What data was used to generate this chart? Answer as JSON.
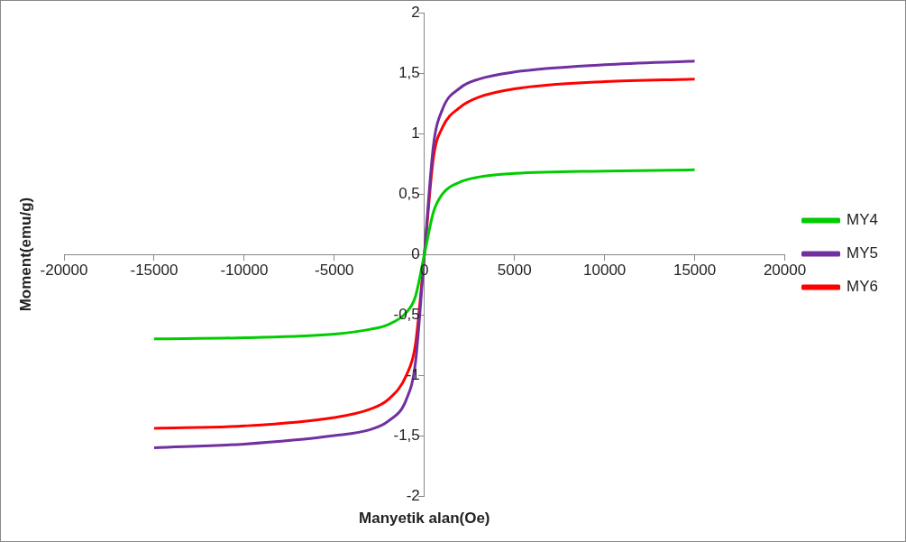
{
  "chart_data": {
    "type": "line",
    "xlabel": "Manyetik alan(Oe)",
    "ylabel": "Moment(emu/g)",
    "x": [
      -15000,
      -10000,
      -5000,
      -3000,
      -2000,
      -1000,
      -500,
      0,
      500,
      1000,
      2000,
      3000,
      5000,
      10000,
      15000
    ],
    "series": [
      {
        "name": "MY4",
        "color": "#00cc00",
        "values": [
          -0.7,
          -0.69,
          -0.66,
          -0.62,
          -0.58,
          -0.48,
          -0.35,
          0,
          0.35,
          0.5,
          0.6,
          0.64,
          0.67,
          0.69,
          0.7
        ]
      },
      {
        "name": "MY5",
        "color": "#7030a0",
        "values": [
          -1.6,
          -1.57,
          -1.5,
          -1.45,
          -1.38,
          -1.2,
          -0.9,
          0,
          0.9,
          1.2,
          1.38,
          1.45,
          1.51,
          1.57,
          1.6
        ]
      },
      {
        "name": "MY6",
        "color": "#ff0000",
        "values": [
          -1.44,
          -1.42,
          -1.35,
          -1.28,
          -1.2,
          -1.0,
          -0.75,
          0,
          0.8,
          1.05,
          1.22,
          1.3,
          1.37,
          1.43,
          1.45
        ]
      }
    ],
    "xlim": [
      -20000,
      20000
    ],
    "xticks": [
      -20000,
      -15000,
      -10000,
      -5000,
      0,
      5000,
      10000,
      15000,
      20000
    ],
    "ylim": [
      -2,
      2
    ],
    "yticks": [
      {
        "value": -2,
        "label": "-2"
      },
      {
        "value": -1.5,
        "label": "-1,5"
      },
      {
        "value": -1,
        "label": "-1"
      },
      {
        "value": -0.5,
        "label": "-0,5"
      },
      {
        "value": 0,
        "label": "0"
      },
      {
        "value": 0.5,
        "label": "0,5"
      },
      {
        "value": 1,
        "label": "1"
      },
      {
        "value": 1.5,
        "label": "1,5"
      },
      {
        "value": 2,
        "label": "2"
      }
    ],
    "grid": false,
    "legend": "right",
    "marker": "none",
    "line_style": "solid"
  }
}
